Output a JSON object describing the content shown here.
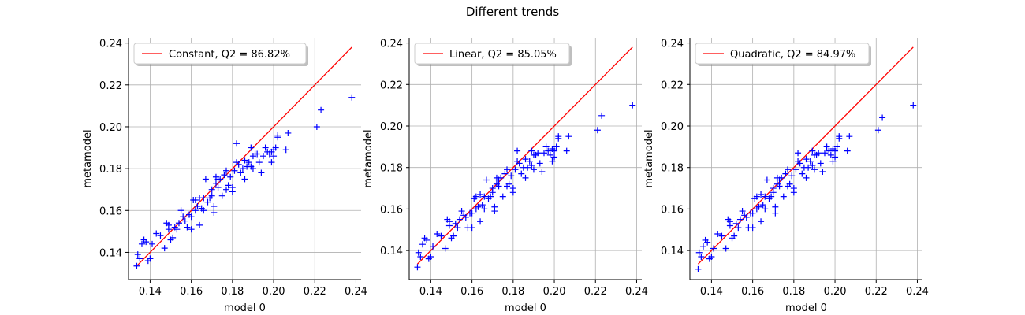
{
  "figure_title": "Different trends",
  "colors": {
    "diagonal": "#ff0000",
    "points": "#0000ff",
    "grid": "#b0b0b0"
  },
  "chart_data": [
    {
      "type": "scatter",
      "legend": "Constant, Q2 = 86.82%",
      "legend_position": "top-left",
      "xlabel": "model 0",
      "ylabel": "metamodel",
      "xlim": [
        0.1295,
        0.2425
      ],
      "ylim": [
        0.127,
        0.2425
      ],
      "xticks": [
        "0.14",
        "0.16",
        "0.18",
        "0.20",
        "0.22",
        "0.24"
      ],
      "yticks": [
        "0.14",
        "0.16",
        "0.18",
        "0.20",
        "0.22",
        "0.24"
      ],
      "grid": true,
      "diagonal": [
        0.1335,
        0.238
      ],
      "points": [
        [
          0.1335,
          0.1335
        ],
        [
          0.134,
          0.139
        ],
        [
          0.135,
          0.137
        ],
        [
          0.136,
          0.144
        ],
        [
          0.137,
          0.146
        ],
        [
          0.138,
          0.145
        ],
        [
          0.139,
          0.136
        ],
        [
          0.14,
          0.137
        ],
        [
          0.141,
          0.144
        ],
        [
          0.143,
          0.149
        ],
        [
          0.145,
          0.148
        ],
        [
          0.147,
          0.142
        ],
        [
          0.148,
          0.154
        ],
        [
          0.149,
          0.153
        ],
        [
          0.149,
          0.151
        ],
        [
          0.15,
          0.146
        ],
        [
          0.151,
          0.147
        ],
        [
          0.152,
          0.152
        ],
        [
          0.153,
          0.151
        ],
        [
          0.154,
          0.154
        ],
        [
          0.155,
          0.16
        ],
        [
          0.156,
          0.157
        ],
        [
          0.157,
          0.155
        ],
        [
          0.158,
          0.152
        ],
        [
          0.159,
          0.158
        ],
        [
          0.16,
          0.151
        ],
        [
          0.16,
          0.157
        ],
        [
          0.161,
          0.165
        ],
        [
          0.162,
          0.16
        ],
        [
          0.162,
          0.165
        ],
        [
          0.163,
          0.162
        ],
        [
          0.164,
          0.166
        ],
        [
          0.164,
          0.153
        ],
        [
          0.165,
          0.161
        ],
        [
          0.166,
          0.166
        ],
        [
          0.166,
          0.16
        ],
        [
          0.167,
          0.175
        ],
        [
          0.168,
          0.164
        ],
        [
          0.169,
          0.166
        ],
        [
          0.17,
          0.17
        ],
        [
          0.17,
          0.167
        ],
        [
          0.171,
          0.162
        ],
        [
          0.171,
          0.159
        ],
        [
          0.172,
          0.173
        ],
        [
          0.172,
          0.176
        ],
        [
          0.173,
          0.175
        ],
        [
          0.173,
          0.171
        ],
        [
          0.174,
          0.175
        ],
        [
          0.175,
          0.167
        ],
        [
          0.176,
          0.177
        ],
        [
          0.177,
          0.17
        ],
        [
          0.177,
          0.179
        ],
        [
          0.178,
          0.172
        ],
        [
          0.179,
          0.176
        ],
        [
          0.18,
          0.169
        ],
        [
          0.18,
          0.171
        ],
        [
          0.181,
          0.179
        ],
        [
          0.182,
          0.192
        ],
        [
          0.182,
          0.183
        ],
        [
          0.183,
          0.182
        ],
        [
          0.184,
          0.178
        ],
        [
          0.185,
          0.18
        ],
        [
          0.186,
          0.175
        ],
        [
          0.186,
          0.184
        ],
        [
          0.187,
          0.181
        ],
        [
          0.188,
          0.183
        ],
        [
          0.189,
          0.19
        ],
        [
          0.189,
          0.181
        ],
        [
          0.19,
          0.186
        ],
        [
          0.19,
          0.18
        ],
        [
          0.191,
          0.187
        ],
        [
          0.192,
          0.187
        ],
        [
          0.193,
          0.183
        ],
        [
          0.194,
          0.178
        ],
        [
          0.195,
          0.186
        ],
        [
          0.196,
          0.19
        ],
        [
          0.197,
          0.188
        ],
        [
          0.198,
          0.187
        ],
        [
          0.199,
          0.188
        ],
        [
          0.199,
          0.183
        ],
        [
          0.2,
          0.189
        ],
        [
          0.2,
          0.186
        ],
        [
          0.201,
          0.19
        ],
        [
          0.202,
          0.195
        ],
        [
          0.202,
          0.196
        ],
        [
          0.206,
          0.189
        ],
        [
          0.207,
          0.197
        ],
        [
          0.221,
          0.2
        ],
        [
          0.223,
          0.208
        ],
        [
          0.238,
          0.214
        ]
      ]
    },
    {
      "type": "scatter",
      "legend": "Linear, Q2 = 85.05%",
      "legend_position": "top-left",
      "xlabel": "model 0",
      "ylabel": "metamodel",
      "xlim": [
        0.1295,
        0.2425
      ],
      "ylim": [
        0.126,
        0.2425
      ],
      "xticks": [
        "0.14",
        "0.16",
        "0.18",
        "0.20",
        "0.22",
        "0.24"
      ],
      "yticks": [
        "0.14",
        "0.16",
        "0.18",
        "0.20",
        "0.22",
        "0.24"
      ],
      "grid": true,
      "diagonal": [
        0.1335,
        0.238
      ],
      "points": [
        [
          0.1335,
          0.132
        ],
        [
          0.134,
          0.139
        ],
        [
          0.135,
          0.137
        ],
        [
          0.136,
          0.143
        ],
        [
          0.137,
          0.146
        ],
        [
          0.138,
          0.145
        ],
        [
          0.139,
          0.136
        ],
        [
          0.14,
          0.137
        ],
        [
          0.141,
          0.142
        ],
        [
          0.143,
          0.148
        ],
        [
          0.145,
          0.147
        ],
        [
          0.147,
          0.141
        ],
        [
          0.148,
          0.155
        ],
        [
          0.149,
          0.154
        ],
        [
          0.149,
          0.152
        ],
        [
          0.15,
          0.146
        ],
        [
          0.151,
          0.147
        ],
        [
          0.152,
          0.153
        ],
        [
          0.153,
          0.151
        ],
        [
          0.154,
          0.155
        ],
        [
          0.155,
          0.159
        ],
        [
          0.156,
          0.157
        ],
        [
          0.157,
          0.156
        ],
        [
          0.158,
          0.151
        ],
        [
          0.159,
          0.158
        ],
        [
          0.16,
          0.151
        ],
        [
          0.16,
          0.158
        ],
        [
          0.161,
          0.165
        ],
        [
          0.162,
          0.16
        ],
        [
          0.162,
          0.166
        ],
        [
          0.163,
          0.161
        ],
        [
          0.164,
          0.167
        ],
        [
          0.164,
          0.154
        ],
        [
          0.165,
          0.162
        ],
        [
          0.166,
          0.166
        ],
        [
          0.166,
          0.16
        ],
        [
          0.167,
          0.174
        ],
        [
          0.168,
          0.165
        ],
        [
          0.169,
          0.166
        ],
        [
          0.17,
          0.17
        ],
        [
          0.17,
          0.168
        ],
        [
          0.171,
          0.161
        ],
        [
          0.171,
          0.159
        ],
        [
          0.172,
          0.172
        ],
        [
          0.172,
          0.175
        ],
        [
          0.173,
          0.174
        ],
        [
          0.173,
          0.171
        ],
        [
          0.174,
          0.175
        ],
        [
          0.175,
          0.166
        ],
        [
          0.176,
          0.177
        ],
        [
          0.177,
          0.171
        ],
        [
          0.177,
          0.179
        ],
        [
          0.178,
          0.172
        ],
        [
          0.179,
          0.176
        ],
        [
          0.18,
          0.168
        ],
        [
          0.18,
          0.17
        ],
        [
          0.181,
          0.179
        ],
        [
          0.182,
          0.188
        ],
        [
          0.182,
          0.183
        ],
        [
          0.183,
          0.182
        ],
        [
          0.184,
          0.177
        ],
        [
          0.185,
          0.18
        ],
        [
          0.186,
          0.175
        ],
        [
          0.186,
          0.184
        ],
        [
          0.187,
          0.18
        ],
        [
          0.188,
          0.183
        ],
        [
          0.189,
          0.188
        ],
        [
          0.189,
          0.181
        ],
        [
          0.19,
          0.186
        ],
        [
          0.19,
          0.179
        ],
        [
          0.191,
          0.186
        ],
        [
          0.192,
          0.187
        ],
        [
          0.193,
          0.182
        ],
        [
          0.194,
          0.178
        ],
        [
          0.195,
          0.187
        ],
        [
          0.196,
          0.19
        ],
        [
          0.197,
          0.188
        ],
        [
          0.198,
          0.186
        ],
        [
          0.199,
          0.189
        ],
        [
          0.199,
          0.183
        ],
        [
          0.2,
          0.188
        ],
        [
          0.2,
          0.185
        ],
        [
          0.201,
          0.19
        ],
        [
          0.202,
          0.194
        ],
        [
          0.202,
          0.195
        ],
        [
          0.206,
          0.188
        ],
        [
          0.207,
          0.195
        ],
        [
          0.221,
          0.198
        ],
        [
          0.223,
          0.205
        ],
        [
          0.238,
          0.21
        ]
      ]
    },
    {
      "type": "scatter",
      "legend": "Quadratic, Q2 = 84.97%",
      "legend_position": "top-left",
      "xlabel": "model 0",
      "ylabel": "metamodel",
      "xlim": [
        0.1295,
        0.2425
      ],
      "ylim": [
        0.126,
        0.2425
      ],
      "xticks": [
        "0.14",
        "0.16",
        "0.18",
        "0.20",
        "0.22",
        "0.24"
      ],
      "yticks": [
        "0.14",
        "0.16",
        "0.18",
        "0.20",
        "0.22",
        "0.24"
      ],
      "grid": true,
      "diagonal": [
        0.1335,
        0.238
      ],
      "points": [
        [
          0.1335,
          0.131
        ],
        [
          0.134,
          0.139
        ],
        [
          0.135,
          0.137
        ],
        [
          0.136,
          0.142
        ],
        [
          0.137,
          0.145
        ],
        [
          0.138,
          0.144
        ],
        [
          0.139,
          0.136
        ],
        [
          0.14,
          0.137
        ],
        [
          0.141,
          0.141
        ],
        [
          0.143,
          0.148
        ],
        [
          0.145,
          0.147
        ],
        [
          0.147,
          0.141
        ],
        [
          0.148,
          0.155
        ],
        [
          0.149,
          0.154
        ],
        [
          0.149,
          0.152
        ],
        [
          0.15,
          0.146
        ],
        [
          0.151,
          0.147
        ],
        [
          0.152,
          0.153
        ],
        [
          0.153,
          0.151
        ],
        [
          0.154,
          0.155
        ],
        [
          0.155,
          0.159
        ],
        [
          0.156,
          0.157
        ],
        [
          0.157,
          0.156
        ],
        [
          0.158,
          0.151
        ],
        [
          0.159,
          0.158
        ],
        [
          0.16,
          0.151
        ],
        [
          0.16,
          0.158
        ],
        [
          0.161,
          0.165
        ],
        [
          0.162,
          0.16
        ],
        [
          0.162,
          0.166
        ],
        [
          0.163,
          0.161
        ],
        [
          0.164,
          0.167
        ],
        [
          0.164,
          0.154
        ],
        [
          0.165,
          0.162
        ],
        [
          0.166,
          0.166
        ],
        [
          0.166,
          0.16
        ],
        [
          0.167,
          0.174
        ],
        [
          0.168,
          0.165
        ],
        [
          0.169,
          0.166
        ],
        [
          0.17,
          0.17
        ],
        [
          0.17,
          0.168
        ],
        [
          0.171,
          0.161
        ],
        [
          0.171,
          0.158
        ],
        [
          0.172,
          0.172
        ],
        [
          0.172,
          0.175
        ],
        [
          0.173,
          0.174
        ],
        [
          0.173,
          0.171
        ],
        [
          0.174,
          0.175
        ],
        [
          0.175,
          0.166
        ],
        [
          0.176,
          0.177
        ],
        [
          0.177,
          0.171
        ],
        [
          0.177,
          0.179
        ],
        [
          0.178,
          0.172
        ],
        [
          0.179,
          0.176
        ],
        [
          0.18,
          0.168
        ],
        [
          0.18,
          0.17
        ],
        [
          0.181,
          0.179
        ],
        [
          0.182,
          0.187
        ],
        [
          0.182,
          0.183
        ],
        [
          0.183,
          0.182
        ],
        [
          0.184,
          0.177
        ],
        [
          0.185,
          0.18
        ],
        [
          0.186,
          0.175
        ],
        [
          0.186,
          0.184
        ],
        [
          0.187,
          0.18
        ],
        [
          0.188,
          0.183
        ],
        [
          0.189,
          0.188
        ],
        [
          0.189,
          0.181
        ],
        [
          0.19,
          0.186
        ],
        [
          0.19,
          0.179
        ],
        [
          0.191,
          0.186
        ],
        [
          0.192,
          0.187
        ],
        [
          0.193,
          0.182
        ],
        [
          0.194,
          0.178
        ],
        [
          0.195,
          0.187
        ],
        [
          0.196,
          0.19
        ],
        [
          0.197,
          0.188
        ],
        [
          0.198,
          0.186
        ],
        [
          0.199,
          0.189
        ],
        [
          0.199,
          0.183
        ],
        [
          0.2,
          0.188
        ],
        [
          0.2,
          0.185
        ],
        [
          0.201,
          0.19
        ],
        [
          0.202,
          0.194
        ],
        [
          0.202,
          0.195
        ],
        [
          0.206,
          0.188
        ],
        [
          0.207,
          0.195
        ],
        [
          0.221,
          0.198
        ],
        [
          0.223,
          0.204
        ],
        [
          0.238,
          0.21
        ]
      ]
    }
  ]
}
